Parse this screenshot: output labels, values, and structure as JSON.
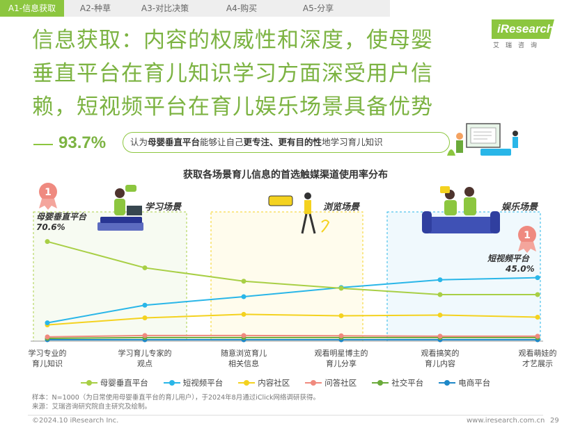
{
  "tabs": [
    {
      "label": "A1-信息获取",
      "active": true
    },
    {
      "label": "A2-种草",
      "active": false
    },
    {
      "label": "A3-对比决策",
      "active": false
    },
    {
      "label": "A4-购买",
      "active": false
    },
    {
      "label": "A5-分享",
      "active": false
    }
  ],
  "logo": {
    "main": "iResearch",
    "sub": "艾瑞咨询"
  },
  "headline": [
    "信息获取：内容的权威性和深度，使母婴",
    "垂直平台在育儿知识学习方面深受用户信",
    "赖，短视频平台在育儿娱乐场景具备优势"
  ],
  "stat": {
    "percent": "93.7%",
    "prefix": "认为",
    "bold1": "母婴垂直平台",
    "middle": "能够让自己",
    "bold2": "更专注、更有目的性",
    "suffix": "地学习育儿知识"
  },
  "chart_data": {
    "type": "line",
    "title": "获取各场景育儿信息的首选触媒渠道使用率分布",
    "categories": [
      "学习专业的\n育儿知识",
      "学习育儿专家的\n观点",
      "随意浏览育儿\n相关信息",
      "观看明星博主的\n育儿分享",
      "观看搞笑的\n育儿内容",
      "观看萌娃的\n才艺展示"
    ],
    "ylim": [
      0,
      100
    ],
    "grid": false,
    "legend_position": "bottom",
    "series": [
      {
        "name": "母婴垂直平台",
        "color": "#a8cf45",
        "values": [
          70.6,
          52.0,
          42.5,
          37.5,
          33.0,
          33.0
        ]
      },
      {
        "name": "短视频平台",
        "color": "#29b6e8",
        "values": [
          13.0,
          25.5,
          31.5,
          38.0,
          43.5,
          45.0
        ]
      },
      {
        "name": "内容社区",
        "color": "#f4d21f",
        "values": [
          11.5,
          16.5,
          19.0,
          18.0,
          18.5,
          17.0
        ]
      },
      {
        "name": "问答社区",
        "color": "#f08a7e",
        "values": [
          3.0,
          4.0,
          4.0,
          3.8,
          3.5,
          3.5
        ]
      },
      {
        "name": "社交平台",
        "color": "#6aaa3a",
        "values": [
          2.0,
          2.5,
          2.5,
          2.5,
          2.5,
          2.5
        ]
      },
      {
        "name": "电商平台",
        "color": "#1e88c8",
        "values": [
          1.0,
          1.0,
          1.0,
          1.0,
          1.0,
          1.0
        ]
      }
    ],
    "annotations": [
      {
        "name": "母婴垂直平台",
        "value": "70.6%",
        "rank": "1"
      },
      {
        "name": "短视频平台",
        "value": "45.0%",
        "rank": "1"
      }
    ],
    "scenes": [
      "学习场景",
      "浏览场景",
      "娱乐场景"
    ]
  },
  "footnote": [
    "样本：N=1000（为日常使用母婴垂直平台的育儿用户），于2024年8月通过iClick网络调研获得。",
    "来源：艾瑞咨询研究院自主研究及绘制。"
  ],
  "footer": {
    "copyright": "©2024.10 iResearch Inc.",
    "url": "www.iresearch.com.cn",
    "page": "29"
  }
}
